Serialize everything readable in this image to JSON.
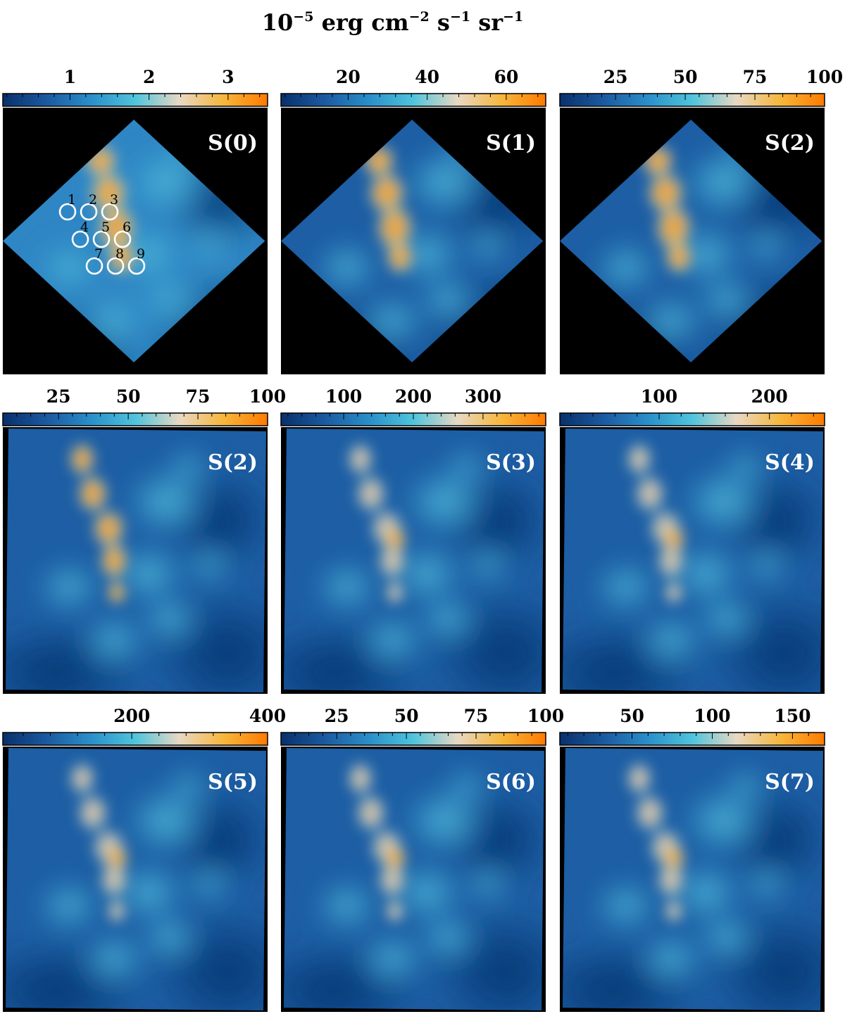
{
  "figure": {
    "unit_label": {
      "prefix": "10",
      "exp": "−5",
      "text1": " erg cm",
      "exp2": "−2",
      "text2": " s",
      "exp3": "−1",
      "text3": " sr",
      "exp4": "−1"
    }
  },
  "colormap": [
    "#08306b",
    "#1b5aa0",
    "#2a8fc9",
    "#4fc4dc",
    "#e8d8c4",
    "#f6b73c",
    "#ff7a00"
  ],
  "chart_data": [
    {
      "type": "heatmap",
      "title": "S(0)",
      "footprint": "diamond",
      "colorbar": {
        "range": [
          0.15,
          3.5
        ],
        "ticks": [
          1,
          2,
          3
        ],
        "tick_labels": [
          "1",
          "2",
          "3"
        ]
      },
      "apertures": [
        "1",
        "2",
        "3",
        "4",
        "5",
        "6",
        "7",
        "8",
        "9"
      ]
    },
    {
      "type": "heatmap",
      "title": "S(1)",
      "footprint": "diamond",
      "colorbar": {
        "range": [
          3,
          70
        ],
        "ticks": [
          20,
          40,
          60
        ],
        "tick_labels": [
          "20",
          "40",
          "60"
        ]
      }
    },
    {
      "type": "heatmap",
      "title": "S(2)",
      "footprint": "diamond",
      "colorbar": {
        "range": [
          5,
          100
        ],
        "ticks": [
          25,
          50,
          75,
          100
        ],
        "tick_labels": [
          "25",
          "50",
          "75",
          "100"
        ]
      }
    },
    {
      "type": "heatmap",
      "title": "S(2)",
      "footprint": "square",
      "colorbar": {
        "range": [
          5,
          100
        ],
        "ticks": [
          25,
          50,
          75,
          100
        ],
        "tick_labels": [
          "25",
          "50",
          "75",
          "100"
        ]
      }
    },
    {
      "type": "heatmap",
      "title": "S(3)",
      "footprint": "square",
      "colorbar": {
        "range": [
          10,
          390
        ],
        "ticks": [
          100,
          200,
          300
        ],
        "tick_labels": [
          "100",
          "200",
          "300"
        ]
      }
    },
    {
      "type": "heatmap",
      "title": "S(4)",
      "footprint": "square",
      "colorbar": {
        "range": [
          10,
          250
        ],
        "ticks": [
          100,
          200
        ],
        "tick_labels": [
          "100",
          "200"
        ]
      }
    },
    {
      "type": "heatmap",
      "title": "S(5)",
      "footprint": "square",
      "colorbar": {
        "range": [
          10,
          400
        ],
        "ticks": [
          200,
          400
        ],
        "tick_labels": [
          "200",
          "400"
        ]
      }
    },
    {
      "type": "heatmap",
      "title": "S(6)",
      "footprint": "square",
      "colorbar": {
        "range": [
          5,
          100
        ],
        "ticks": [
          25,
          50,
          75,
          100
        ],
        "tick_labels": [
          "25",
          "50",
          "75",
          "100"
        ]
      }
    },
    {
      "type": "heatmap",
      "title": "S(7)",
      "footprint": "square",
      "colorbar": {
        "range": [
          5,
          170
        ],
        "ticks": [
          50,
          100,
          150
        ],
        "tick_labels": [
          "50",
          "100",
          "150"
        ]
      }
    }
  ]
}
